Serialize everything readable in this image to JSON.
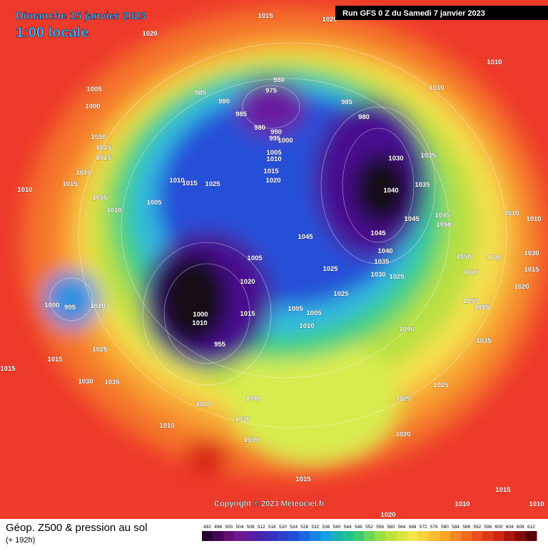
{
  "header": {
    "date": "Dimanche 15 janvier 2023",
    "time": "1:00 locale",
    "run": "Run GFS 0 Z du Samedi 7 janvier 2023"
  },
  "copyright": "Copyright © 2023 Meteociel.fr",
  "footer": {
    "title": "Géop. Z500 & pression au sol",
    "subtitle": "(+ 192h)"
  },
  "colorbar": {
    "labels": [
      492,
      496,
      500,
      504,
      508,
      512,
      516,
      520,
      524,
      528,
      532,
      536,
      540,
      544,
      548,
      552,
      556,
      560,
      564,
      568,
      572,
      576,
      580,
      584,
      588,
      592,
      596,
      600,
      604,
      608,
      612
    ]
  },
  "isobars": [
    1015,
    1020,
    1020,
    1010,
    1005,
    1000,
    985,
    980,
    975,
    980,
    985,
    980,
    990,
    995,
    1000,
    985,
    980,
    1010,
    1035,
    1030,
    1040,
    1035,
    1045,
    1050,
    1045,
    1045,
    1040,
    1035,
    1030,
    1025,
    1025,
    1045,
    1005,
    1010,
    1015,
    1020,
    1025,
    1015,
    1010,
    1005,
    1010,
    1005,
    1010,
    1015,
    1015,
    1015,
    1015,
    1010,
    1005,
    1020,
    1015,
    1000,
    1010,
    955,
    1005,
    1005,
    1010,
    1025,
    1045,
    1055,
    1055,
    1035,
    1025,
    1025,
    1020,
    1010,
    1010,
    1010,
    1050,
    1045,
    1020,
    1015,
    1030,
    1025,
    1015,
    1015,
    1030,
    1035,
    1000,
    995,
    1010,
    1010,
    1010,
    1030,
    1040,
    1035,
    1015,
    1015,
    1010,
    1010,
    1020
  ]
}
